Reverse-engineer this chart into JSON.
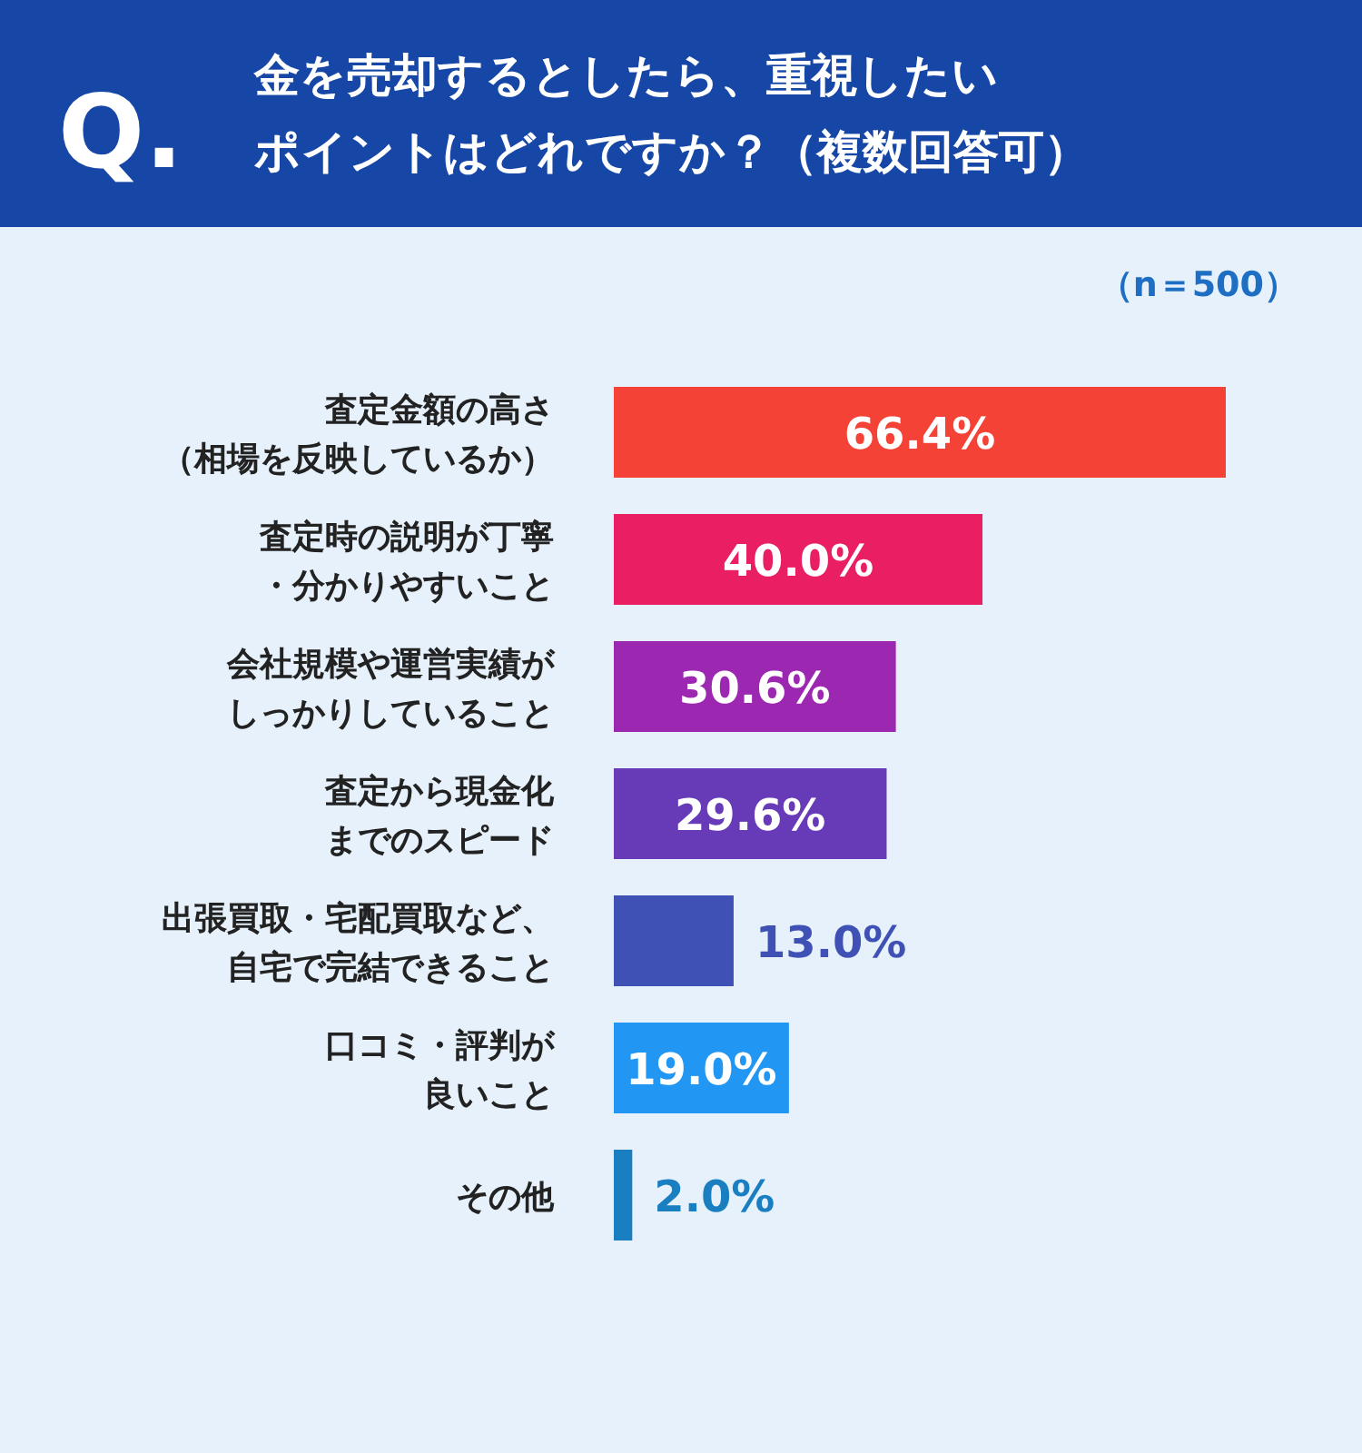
{
  "chart_data": {
    "type": "bar",
    "orientation": "horizontal",
    "title": "金を売却するとしたら、重視したいポイントはどれですか？（複数回答可）",
    "subtitle": "（n＝500）",
    "annotations": [
      "Q."
    ],
    "categories": [
      "査定金額の高さ（相場を反映しているか）",
      "査定時の説明が丁寧・分かりやすいこと",
      "会社規模や運営実績がしっかりしていること",
      "査定から現金化までのスピード",
      "出張買取・宅配買取など、自宅で完結できること",
      "口コミ・評判が良いこと",
      "その他"
    ],
    "values": [
      66.4,
      40.0,
      30.6,
      29.6,
      13.0,
      19.0,
      2.0
    ],
    "value_labels": [
      "66.4%",
      "40.0%",
      "30.6%",
      "29.6%",
      "13.0%",
      "19.0%",
      "2.0%"
    ],
    "colors": [
      "#f44336",
      "#e91e63",
      "#9c27b0",
      "#673ab7",
      "#3f51b5",
      "#2196f3",
      "#1a7fc0"
    ]
  }
}
